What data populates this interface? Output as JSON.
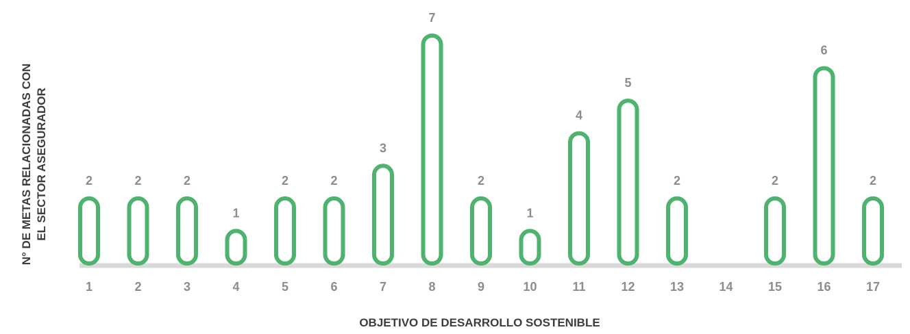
{
  "chart_data": {
    "type": "bar",
    "title": "",
    "xlabel": "OBJETIVO DE DESARROLLO SOSTENIBLE",
    "ylabel": "N° DE METAS RELACIONADAS CON EL SECTOR ASEGURADOR",
    "ylabel_lines": [
      "N° DE METAS RELACIONADAS CON",
      "EL SECTOR ASEGURADOR"
    ],
    "categories": [
      "1",
      "2",
      "3",
      "4",
      "5",
      "6",
      "7",
      "8",
      "9",
      "10",
      "11",
      "12",
      "13",
      "14",
      "15",
      "16",
      "17"
    ],
    "values": [
      2,
      2,
      2,
      1,
      2,
      2,
      3,
      7,
      2,
      1,
      4,
      5,
      2,
      0,
      2,
      6,
      2
    ],
    "data_labels": [
      "2",
      "2",
      "2",
      "1",
      "2",
      "2",
      "3",
      "7",
      "2",
      "1",
      "4",
      "5",
      "2",
      "",
      "2",
      "6",
      "2"
    ],
    "ylim": [
      0,
      7
    ],
    "grid": false,
    "bar_style": "rounded-outline",
    "colors": {
      "bar_stroke": "#4db36e",
      "baseline": "#d9d9d9",
      "label_text": "#8c8c8c",
      "axis_title_text": "#3d3d3d"
    }
  }
}
